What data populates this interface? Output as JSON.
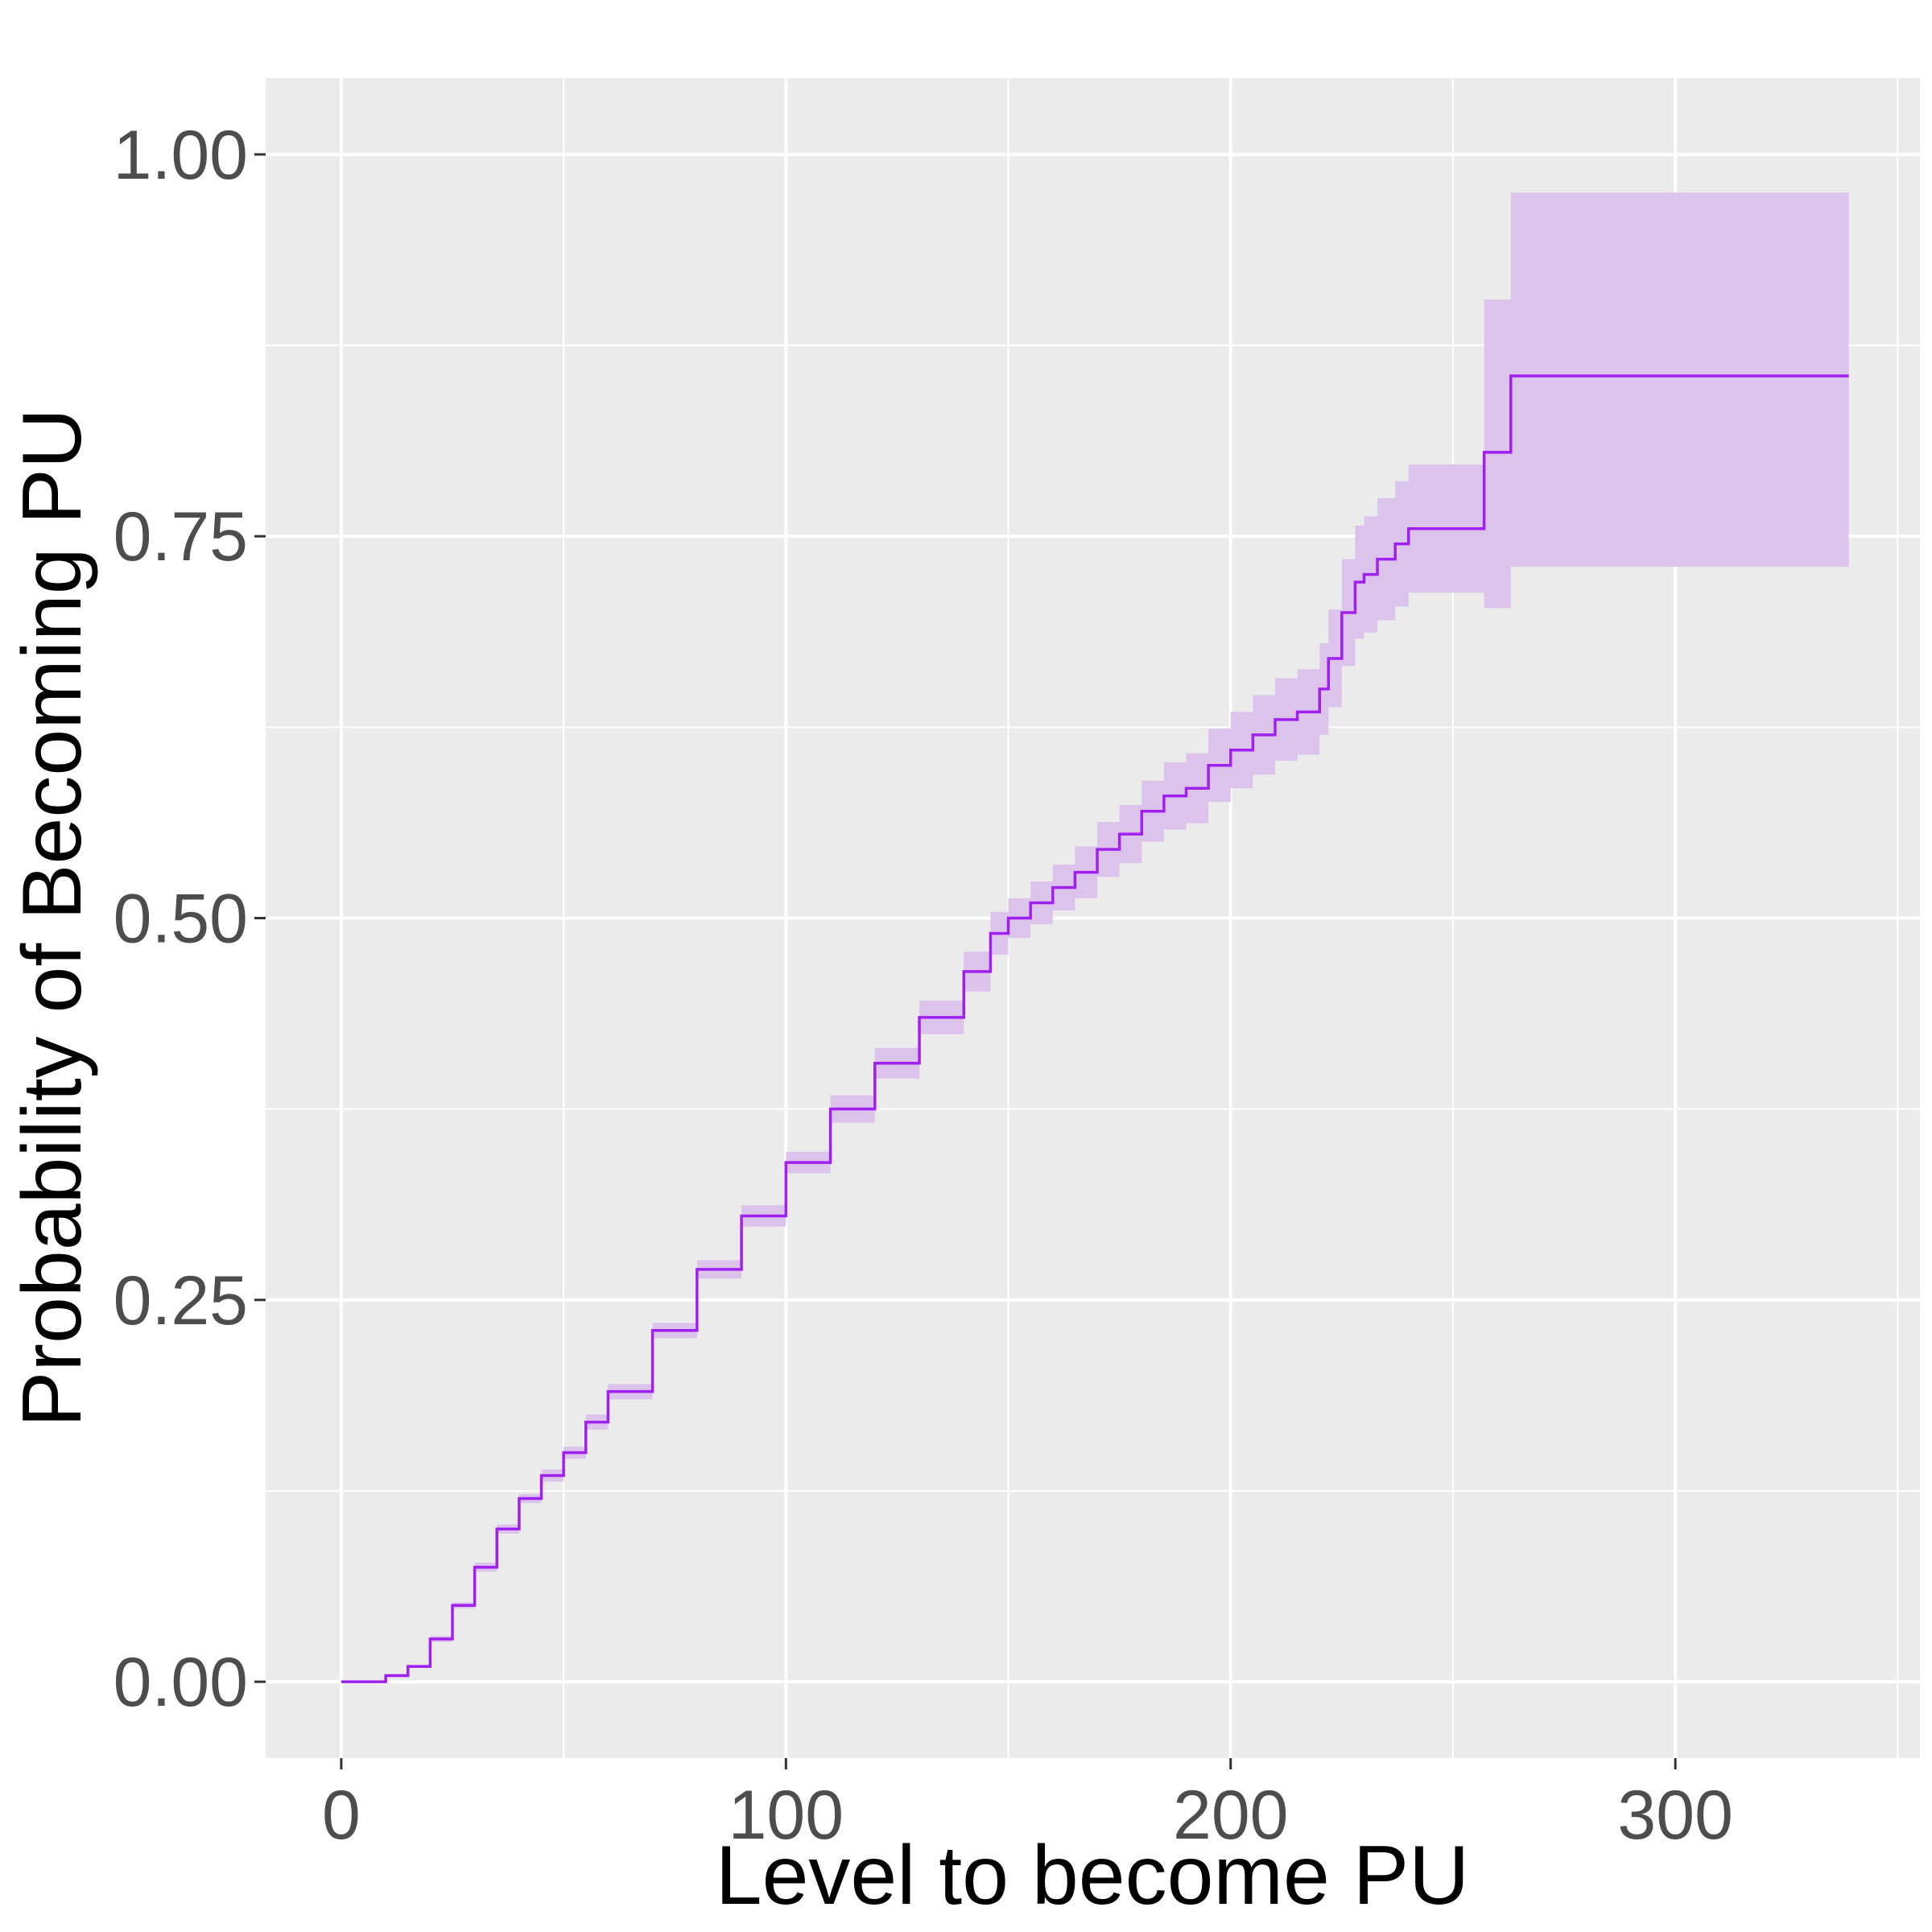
{
  "chart_data": {
    "type": "line",
    "title": "",
    "xlabel": "Level to become PU",
    "ylabel": "Probability of Becoming PU",
    "xlim": [
      -17,
      355
    ],
    "ylim": [
      -0.05,
      1.05
    ],
    "x_ticks": [
      0,
      100,
      200,
      300
    ],
    "x_tick_labels": [
      "0",
      "100",
      "200",
      "300"
    ],
    "y_ticks": [
      0,
      0.25,
      0.5,
      0.75,
      1.0
    ],
    "y_tick_labels": [
      "0.00",
      "0.25",
      "0.50",
      "0.75",
      "1.00"
    ],
    "grid": true,
    "legend": "none",
    "colors": {
      "panel": "#ebebeb",
      "grid": "#ffffff",
      "line": "#a020f0",
      "band": "#dcc3ec"
    },
    "series": [
      {
        "x": [
          0,
          10,
          15,
          20,
          25,
          30,
          35,
          40,
          45,
          50,
          55,
          60,
          70,
          80,
          90,
          100,
          110,
          120,
          130,
          140,
          146,
          150,
          155,
          160,
          165,
          170,
          175,
          180,
          185,
          190,
          195,
          200,
          205,
          210,
          215,
          220,
          222,
          225,
          228,
          230,
          233,
          237,
          240,
          250,
          257,
          263,
          300,
          339
        ],
        "y": [
          0,
          0.004,
          0.01,
          0.028,
          0.05,
          0.075,
          0.1,
          0.12,
          0.135,
          0.15,
          0.17,
          0.19,
          0.23,
          0.27,
          0.305,
          0.34,
          0.375,
          0.405,
          0.435,
          0.465,
          0.49,
          0.5,
          0.51,
          0.52,
          0.53,
          0.545,
          0.555,
          0.57,
          0.58,
          0.585,
          0.6,
          0.61,
          0.62,
          0.63,
          0.635,
          0.65,
          0.67,
          0.7,
          0.72,
          0.725,
          0.735,
          0.745,
          0.755,
          0.755,
          0.805,
          0.855,
          0.855,
          0.855
        ],
        "lower": [
          0,
          0.003,
          0.009,
          0.026,
          0.048,
          0.072,
          0.097,
          0.117,
          0.131,
          0.146,
          0.165,
          0.185,
          0.225,
          0.264,
          0.298,
          0.333,
          0.366,
          0.395,
          0.424,
          0.452,
          0.476,
          0.487,
          0.496,
          0.505,
          0.513,
          0.527,
          0.536,
          0.55,
          0.558,
          0.562,
          0.576,
          0.585,
          0.594,
          0.603,
          0.607,
          0.62,
          0.638,
          0.665,
          0.683,
          0.687,
          0.695,
          0.704,
          0.713,
          0.713,
          0.703,
          0.73,
          0.73,
          0.73
        ],
        "upper": [
          0,
          0.005,
          0.011,
          0.03,
          0.052,
          0.078,
          0.103,
          0.123,
          0.139,
          0.154,
          0.175,
          0.195,
          0.235,
          0.276,
          0.312,
          0.347,
          0.384,
          0.415,
          0.446,
          0.478,
          0.504,
          0.513,
          0.524,
          0.535,
          0.547,
          0.563,
          0.574,
          0.59,
          0.602,
          0.608,
          0.624,
          0.635,
          0.646,
          0.657,
          0.663,
          0.68,
          0.702,
          0.735,
          0.757,
          0.763,
          0.775,
          0.786,
          0.797,
          0.797,
          0.905,
          0.975,
          0.975,
          0.975
        ]
      }
    ]
  }
}
